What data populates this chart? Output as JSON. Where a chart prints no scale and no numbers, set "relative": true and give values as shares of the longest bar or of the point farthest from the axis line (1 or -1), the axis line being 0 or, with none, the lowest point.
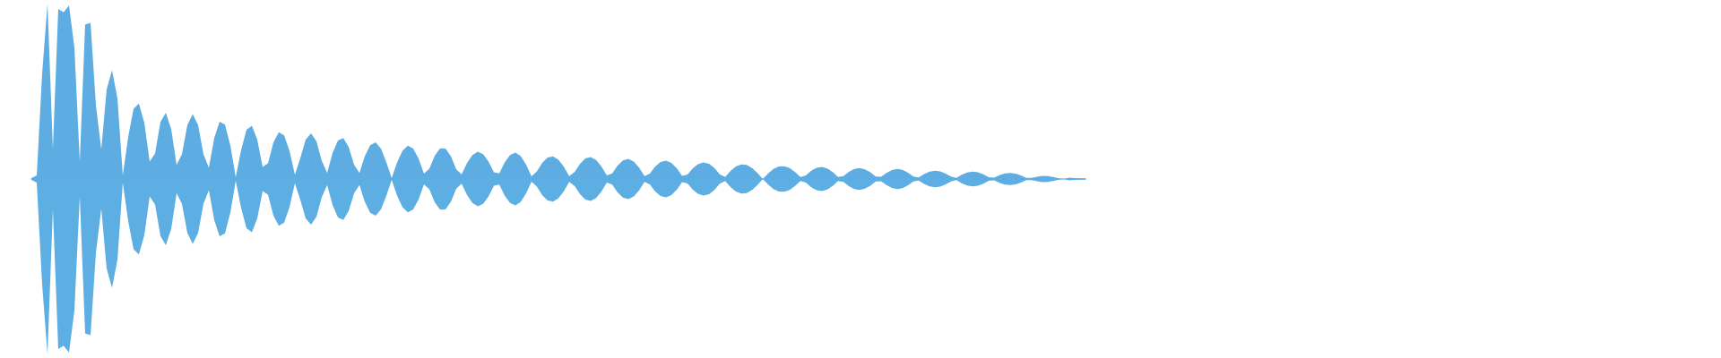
{
  "chart_data": {
    "type": "area",
    "relative": true,
    "categories": [
      null,
      null,
      null,
      null,
      null,
      null,
      null,
      null,
      null,
      null,
      null,
      null,
      null,
      null,
      null,
      null,
      null,
      null,
      null,
      null,
      null,
      null,
      null,
      null,
      null,
      null,
      null,
      null,
      null,
      null,
      null,
      null,
      null,
      null,
      null,
      null,
      null,
      null,
      null,
      null,
      null,
      null,
      null,
      null,
      null,
      null,
      null,
      null,
      null,
      null,
      null,
      null,
      null,
      null,
      null,
      null,
      null,
      null,
      null,
      null,
      null,
      null,
      null,
      null,
      null,
      null,
      null,
      null,
      null,
      null,
      null,
      null,
      null,
      null,
      null,
      null,
      null,
      null,
      null,
      null,
      null,
      null,
      null,
      null,
      null,
      null,
      null,
      null,
      null,
      null,
      null,
      null,
      null,
      null,
      null,
      null,
      null,
      null,
      null,
      null,
      null,
      null,
      null,
      null,
      null,
      null,
      null,
      null,
      null,
      null,
      null,
      null,
      null,
      null,
      null,
      null,
      null,
      null,
      null,
      null,
      null,
      null,
      null,
      null,
      null,
      null,
      null,
      null,
      null,
      null,
      null,
      null,
      null,
      null,
      null,
      null,
      null,
      null,
      null,
      null,
      null,
      null,
      null,
      null,
      null,
      null,
      null,
      null,
      null,
      null,
      null,
      null,
      null,
      null,
      null,
      null,
      null,
      null,
      null,
      null,
      null,
      null,
      null,
      null,
      null,
      null,
      null,
      null,
      null,
      null,
      null,
      null,
      null,
      null,
      null,
      null,
      null,
      null,
      null,
      null,
      null,
      null,
      null,
      null,
      null,
      null,
      null,
      null,
      null,
      null,
      null,
      null,
      null,
      null,
      null,
      null,
      null
    ],
    "series": [
      {
        "color": "#5dade2",
        "values": [
          0.005,
          0.02,
          0.6,
          1.0,
          0.17,
          0.97,
          0.95,
          0.99,
          0.75,
          0.1,
          0.88,
          0.89,
          0.42,
          0.17,
          0.51,
          0.62,
          0.46,
          0.02,
          0.24,
          0.4,
          0.43,
          0.32,
          0.1,
          0.145,
          0.325,
          0.378,
          0.285,
          0.08,
          0.142,
          0.307,
          0.37,
          0.307,
          0.142,
          0.064,
          0.234,
          0.326,
          0.31,
          0.191,
          0.01,
          0.164,
          0.281,
          0.304,
          0.224,
          0.069,
          0.089,
          0.208,
          0.267,
          0.249,
          0.16,
          0.024,
          0.118,
          0.224,
          0.26,
          0.215,
          0.103,
          0.035,
          0.148,
          0.22,
          0.233,
          0.182,
          0.081,
          0.035,
          0.13,
          0.193,
          0.209,
          0.174,
          0.096,
          0.005,
          0.094,
          0.161,
          0.19,
          0.173,
          0.116,
          0.031,
          0.059,
          0.133,
          0.175,
          0.174,
          0.13,
          0.055,
          0.027,
          0.091,
          0.137,
          0.155,
          0.142,
          0.1,
          0.038,
          0.032,
          0.095,
          0.137,
          0.15,
          0.13,
          0.081,
          0.015,
          0.044,
          0.093,
          0.123,
          0.129,
          0.11,
          0.07,
          0.016,
          0.039,
          0.086,
          0.117,
          0.125,
          0.109,
          0.072,
          0.021,
          0.032,
          0.077,
          0.106,
          0.115,
          0.1,
          0.065,
          0.017,
          0.031,
          0.071,
          0.097,
          0.105,
          0.092,
          0.061,
          0.018,
          0.025,
          0.061,
          0.086,
          0.095,
          0.087,
          0.063,
          0.027,
          0.012,
          0.046,
          0.071,
          0.083,
          0.08,
          0.063,
          0.034,
          0,
          0.032,
          0.057,
          0.071,
          0.073,
          0.062,
          0.04,
          0.011,
          0.02,
          0.047,
          0.064,
          0.069,
          0.06,
          0.04,
          0.012,
          0.017,
          0.041,
          0.057,
          0.062,
          0.055,
          0.038,
          0.014,
          0.013,
          0.035,
          0.051,
          0.057,
          0.052,
          0.036,
          0.014,
          0.009,
          0.028,
          0.042,
          0.047,
          0.043,
          0.031,
          0.014,
          0.006,
          0.024,
          0.037,
          0.042,
          0.038,
          0.027,
          0.01,
          0.008,
          0.022,
          0.032,
          0.035,
          0.031,
          0.021,
          0.006,
          0.006,
          0.013,
          0.018,
          0.017,
          0.012,
          0.004,
          0,
          0.008,
          0.005,
          0.004,
          0.004
        ]
      },
      {
        "color": "#5daee2",
        "values": [
          -0.005,
          -0.02,
          -0.6,
          -1.0,
          -0.17,
          -0.97,
          -0.95,
          -0.99,
          -0.75,
          -0.1,
          -0.88,
          -0.89,
          -0.42,
          -0.17,
          -0.51,
          -0.62,
          -0.46,
          -0.02,
          -0.24,
          -0.4,
          -0.43,
          -0.32,
          -0.1,
          -0.145,
          -0.325,
          -0.378,
          -0.285,
          -0.08,
          -0.142,
          -0.307,
          -0.37,
          -0.307,
          -0.142,
          -0.064,
          -0.234,
          -0.326,
          -0.31,
          -0.191,
          -0.01,
          -0.164,
          -0.281,
          -0.304,
          -0.224,
          -0.069,
          -0.089,
          -0.208,
          -0.267,
          -0.249,
          -0.16,
          -0.024,
          -0.118,
          -0.224,
          -0.26,
          -0.215,
          -0.103,
          -0.035,
          -0.148,
          -0.22,
          -0.233,
          -0.182,
          -0.081,
          -0.035,
          -0.13,
          -0.193,
          -0.209,
          -0.174,
          -0.096,
          -0.005,
          -0.094,
          -0.161,
          -0.19,
          -0.173,
          -0.116,
          -0.031,
          -0.059,
          -0.133,
          -0.175,
          -0.174,
          -0.13,
          -0.055,
          -0.027,
          -0.091,
          -0.137,
          -0.155,
          -0.142,
          -0.1,
          -0.038,
          -0.032,
          -0.095,
          -0.137,
          -0.15,
          -0.13,
          -0.081,
          -0.015,
          -0.044,
          -0.093,
          -0.123,
          -0.129,
          -0.11,
          -0.07,
          -0.016,
          -0.039,
          -0.086,
          -0.117,
          -0.125,
          -0.109,
          -0.072,
          -0.021,
          -0.032,
          -0.077,
          -0.106,
          -0.115,
          -0.1,
          -0.065,
          -0.017,
          -0.031,
          -0.071,
          -0.097,
          -0.105,
          -0.092,
          -0.061,
          -0.018,
          -0.025,
          -0.061,
          -0.086,
          -0.095,
          -0.087,
          -0.063,
          -0.027,
          -0.012,
          -0.046,
          -0.071,
          -0.083,
          -0.08,
          -0.063,
          -0.034,
          0,
          -0.032,
          -0.057,
          -0.071,
          -0.073,
          -0.062,
          -0.04,
          -0.011,
          -0.02,
          -0.047,
          -0.064,
          -0.069,
          -0.06,
          -0.04,
          -0.012,
          -0.017,
          -0.041,
          -0.057,
          -0.062,
          -0.055,
          -0.038,
          -0.014,
          -0.013,
          -0.035,
          -0.051,
          -0.057,
          -0.052,
          -0.036,
          -0.014,
          -0.009,
          -0.028,
          -0.042,
          -0.047,
          -0.043,
          -0.031,
          -0.014,
          -0.006,
          -0.024,
          -0.037,
          -0.042,
          -0.038,
          -0.027,
          -0.01,
          -0.008,
          -0.022,
          -0.032,
          -0.035,
          -0.031,
          -0.021,
          -0.006,
          -0.006,
          -0.013,
          -0.018,
          -0.017,
          -0.012,
          -0.004,
          0,
          -0.008,
          -0.005,
          -0.004,
          -0.004
        ]
      }
    ]
  }
}
